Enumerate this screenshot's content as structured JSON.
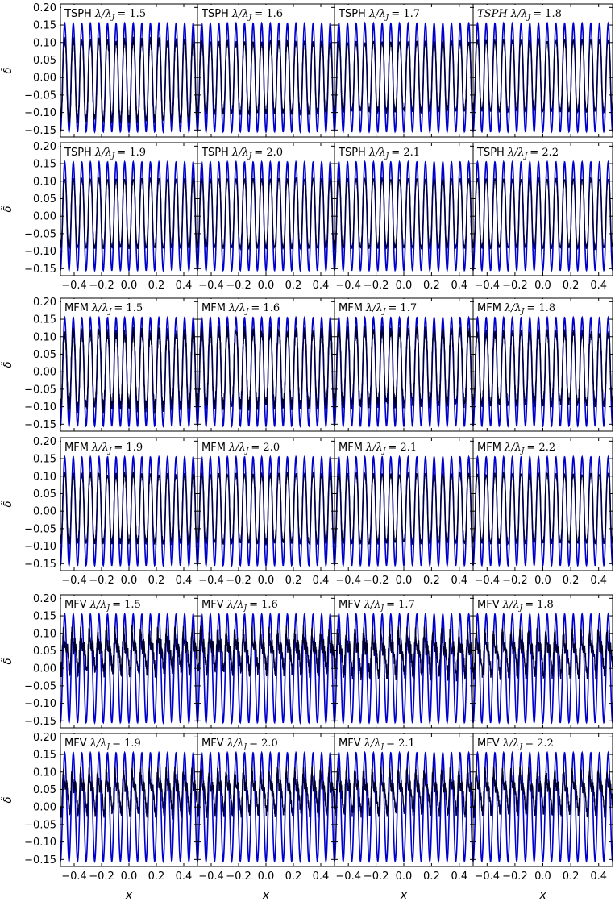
{
  "colors": {
    "analytic": "#0000cc",
    "simulation": "#000033",
    "axes": "#000000",
    "background": "#ffffff"
  },
  "chart_data": {
    "type": "line",
    "grid": false,
    "layout": "6 rows x 4 columns of panels, shared x and y axes",
    "xlabel": "x",
    "ylabel": "δ̃",
    "xlim": [
      -0.5,
      0.5
    ],
    "ylim": [
      -0.17,
      0.21
    ],
    "xticks": [
      -0.4,
      -0.2,
      0.0,
      0.2,
      0.4
    ],
    "xtick_labels": [
      "−0.4",
      "−0.2",
      "0.0",
      "0.2",
      "0.4"
    ],
    "yticks": [
      -0.15,
      -0.1,
      -0.05,
      0.0,
      0.05,
      0.1,
      0.15,
      0.2
    ],
    "ytick_labels": [
      "−0.15",
      "−0.10",
      "−0.05",
      "0.00",
      "0.05",
      "0.10",
      "0.15",
      "0.20"
    ],
    "analytic_wave": {
      "amplitude": 0.155,
      "cycles_in_range": 16
    },
    "panels": [
      {
        "method": "TSPH",
        "ratio": "1.5",
        "method_italic": false,
        "sim_max": 0.105,
        "sim_min": -0.12,
        "noise": 0.012
      },
      {
        "method": "TSPH",
        "ratio": "1.6",
        "method_italic": false,
        "sim_max": 0.1,
        "sim_min": -0.1,
        "noise": 0.008
      },
      {
        "method": "TSPH",
        "ratio": "1.7",
        "method_italic": false,
        "sim_max": 0.1,
        "sim_min": -0.095,
        "noise": 0.006
      },
      {
        "method": "TSPH",
        "ratio": "1.8",
        "method_italic": true,
        "sim_max": 0.105,
        "sim_min": -0.095,
        "noise": 0.005
      },
      {
        "method": "TSPH",
        "ratio": "1.9",
        "method_italic": false,
        "sim_max": 0.105,
        "sim_min": -0.09,
        "noise": 0.004
      },
      {
        "method": "TSPH",
        "ratio": "2.0",
        "method_italic": false,
        "sim_max": 0.105,
        "sim_min": -0.09,
        "noise": 0.004
      },
      {
        "method": "TSPH",
        "ratio": "2.1",
        "method_italic": false,
        "sim_max": 0.105,
        "sim_min": -0.09,
        "noise": 0.004
      },
      {
        "method": "TSPH",
        "ratio": "2.2",
        "method_italic": false,
        "sim_max": 0.105,
        "sim_min": -0.09,
        "noise": 0.004
      },
      {
        "method": "MFM",
        "ratio": "1.5",
        "method_italic": false,
        "sim_max": 0.11,
        "sim_min": -0.1,
        "noise": 0.018
      },
      {
        "method": "MFM",
        "ratio": "1.6",
        "method_italic": false,
        "sim_max": 0.115,
        "sim_min": -0.095,
        "noise": 0.016
      },
      {
        "method": "MFM",
        "ratio": "1.7",
        "method_italic": false,
        "sim_max": 0.115,
        "sim_min": -0.09,
        "noise": 0.015
      },
      {
        "method": "MFM",
        "ratio": "1.8",
        "method_italic": false,
        "sim_max": 0.11,
        "sim_min": -0.09,
        "noise": 0.012
      },
      {
        "method": "MFM",
        "ratio": "1.9",
        "method_italic": false,
        "sim_max": 0.105,
        "sim_min": -0.09,
        "noise": 0.008
      },
      {
        "method": "MFM",
        "ratio": "2.0",
        "method_italic": false,
        "sim_max": 0.105,
        "sim_min": -0.09,
        "noise": 0.006
      },
      {
        "method": "MFM",
        "ratio": "2.1",
        "method_italic": false,
        "sim_max": 0.105,
        "sim_min": -0.09,
        "noise": 0.006
      },
      {
        "method": "MFM",
        "ratio": "2.2",
        "method_italic": false,
        "sim_max": 0.105,
        "sim_min": -0.09,
        "noise": 0.005
      },
      {
        "method": "MFV",
        "ratio": "1.5",
        "method_italic": false,
        "sim_max": 0.12,
        "sim_min": -0.02,
        "noise": 0.02
      },
      {
        "method": "MFV",
        "ratio": "1.6",
        "method_italic": false,
        "sim_max": 0.12,
        "sim_min": -0.02,
        "noise": 0.02
      },
      {
        "method": "MFV",
        "ratio": "1.7",
        "method_italic": false,
        "sim_max": 0.12,
        "sim_min": -0.03,
        "noise": 0.02
      },
      {
        "method": "MFV",
        "ratio": "1.8",
        "method_italic": false,
        "sim_max": 0.12,
        "sim_min": -0.03,
        "noise": 0.018
      },
      {
        "method": "MFV",
        "ratio": "1.9",
        "method_italic": false,
        "sim_max": 0.12,
        "sim_min": -0.03,
        "noise": 0.015
      },
      {
        "method": "MFV",
        "ratio": "2.0",
        "method_italic": false,
        "sim_max": 0.12,
        "sim_min": -0.03,
        "noise": 0.015
      },
      {
        "method": "MFV",
        "ratio": "2.1",
        "method_italic": false,
        "sim_max": 0.12,
        "sim_min": -0.03,
        "noise": 0.015
      },
      {
        "method": "MFV",
        "ratio": "2.2",
        "method_italic": false,
        "sim_max": 0.12,
        "sim_min": -0.03,
        "noise": 0.015
      }
    ]
  }
}
